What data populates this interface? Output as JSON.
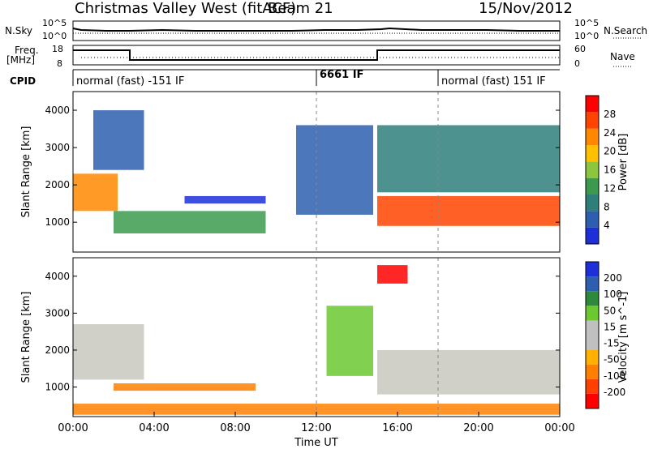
{
  "header": {
    "station": "Christmas Valley West (fitACF)",
    "beam": "Beam 21",
    "date": "15/Nov/2012"
  },
  "noise_panel": {
    "left_label": "N.Sky",
    "right_label": "N.Search",
    "left_ticks": [
      "10^5",
      "10^0"
    ],
    "right_ticks": [
      "10^5",
      "10^0"
    ]
  },
  "freq_panel": {
    "left_label_1": "Freq.",
    "left_label_2": "[MHz]",
    "left_ticks": [
      "18",
      "8"
    ],
    "right_label": "Nave",
    "right_ticks": [
      "60",
      "0"
    ],
    "freq_mhz_segments": [
      {
        "start_h": 0,
        "end_h": 2.8,
        "freq": 15.5
      },
      {
        "start_h": 2.8,
        "end_h": 15.0,
        "freq": 10.5
      },
      {
        "start_h": 15.0,
        "end_h": 24,
        "freq": 15.5
      }
    ]
  },
  "cpid_panel": {
    "label": "CPID",
    "segments": [
      {
        "start_h": 0,
        "text": "normal (fast) -151 IF"
      },
      {
        "start_h": 12,
        "text": "6661 IF"
      },
      {
        "start_h": 18,
        "text": "normal (fast) 151 IF"
      }
    ]
  },
  "colors": {
    "power_scale": [
      "#1c2fd8",
      "#2d5fae",
      "#2e7f7a",
      "#3c9a4e",
      "#8cc63f",
      "#ffc000",
      "#ff8800",
      "#ff4400",
      "#ff0000"
    ],
    "velocity_scale": [
      "#1c2fd8",
      "#2d5fae",
      "#2e8a3a",
      "#6cc830",
      "#c0c0c0",
      "#c0c0c0",
      "#ffb000",
      "#ff8000",
      "#ff4000",
      "#ff0000"
    ]
  },
  "chart_data": [
    {
      "type": "heatmap",
      "title": "",
      "xlabel": "Time UT",
      "ylabel": "Slant Range [km]",
      "xlim": [
        0,
        24
      ],
      "ylim": [
        200,
        4500
      ],
      "x_tick_labels": [
        "00:00",
        "04:00",
        "08:00",
        "12:00",
        "16:00",
        "20:00",
        "00:00"
      ],
      "y_ticks": [
        1000,
        2000,
        3000,
        4000
      ],
      "colorbar": {
        "label": "Power [dB]",
        "ticks": [
          4,
          8,
          12,
          16,
          20,
          24,
          28
        ]
      },
      "regions": [
        {
          "start_h": 0.0,
          "end_h": 2.2,
          "range_from_km": 1300,
          "range_to_km": 2300,
          "value_db": 24
        },
        {
          "start_h": 1.0,
          "end_h": 3.5,
          "range_from_km": 2400,
          "range_to_km": 4000,
          "value_db": 6
        },
        {
          "start_h": 2.0,
          "end_h": 9.5,
          "range_from_km": 700,
          "range_to_km": 1300,
          "value_db": 14
        },
        {
          "start_h": 5.5,
          "end_h": 9.5,
          "range_from_km": 1500,
          "range_to_km": 1700,
          "value_db": 5
        },
        {
          "start_h": 11.0,
          "end_h": 14.8,
          "range_from_km": 1200,
          "range_to_km": 3600,
          "value_db": 6
        },
        {
          "start_h": 15.0,
          "end_h": 24.0,
          "range_from_km": 900,
          "range_to_km": 1700,
          "value_db": 28
        },
        {
          "start_h": 15.0,
          "end_h": 24.0,
          "range_from_km": 1800,
          "range_to_km": 3600,
          "value_db": 10
        }
      ]
    },
    {
      "type": "heatmap",
      "title": "",
      "xlabel": "Time UT",
      "ylabel": "Slant Range [km]",
      "xlim": [
        0,
        24
      ],
      "ylim": [
        200,
        4500
      ],
      "x_tick_labels": [
        "00:00",
        "04:00",
        "08:00",
        "12:00",
        "16:00",
        "20:00",
        "00:00"
      ],
      "y_ticks": [
        1000,
        2000,
        3000,
        4000
      ],
      "colorbar": {
        "label": "Velocity [m s^-1]",
        "ticks": [
          200,
          100,
          50,
          15,
          -15,
          -50,
          -100,
          -200
        ]
      },
      "regions": [
        {
          "start_h": 0.0,
          "end_h": 3.5,
          "range_from_km": 1200,
          "range_to_km": 2700,
          "value_ms": 0
        },
        {
          "start_h": 2.0,
          "end_h": 9.0,
          "range_from_km": 900,
          "range_to_km": 1100,
          "value_ms": -60
        },
        {
          "start_h": 0.0,
          "end_h": 24.0,
          "range_from_km": 250,
          "range_to_km": 550,
          "value_ms": -50
        },
        {
          "start_h": 12.5,
          "end_h": 14.8,
          "range_from_km": 1300,
          "range_to_km": 3200,
          "value_ms": 30
        },
        {
          "start_h": 15.0,
          "end_h": 24.0,
          "range_from_km": 800,
          "range_to_km": 2000,
          "value_ms": 0
        },
        {
          "start_h": 15.0,
          "end_h": 16.5,
          "range_from_km": 3800,
          "range_to_km": 4300,
          "value_ms": -200
        }
      ]
    }
  ]
}
